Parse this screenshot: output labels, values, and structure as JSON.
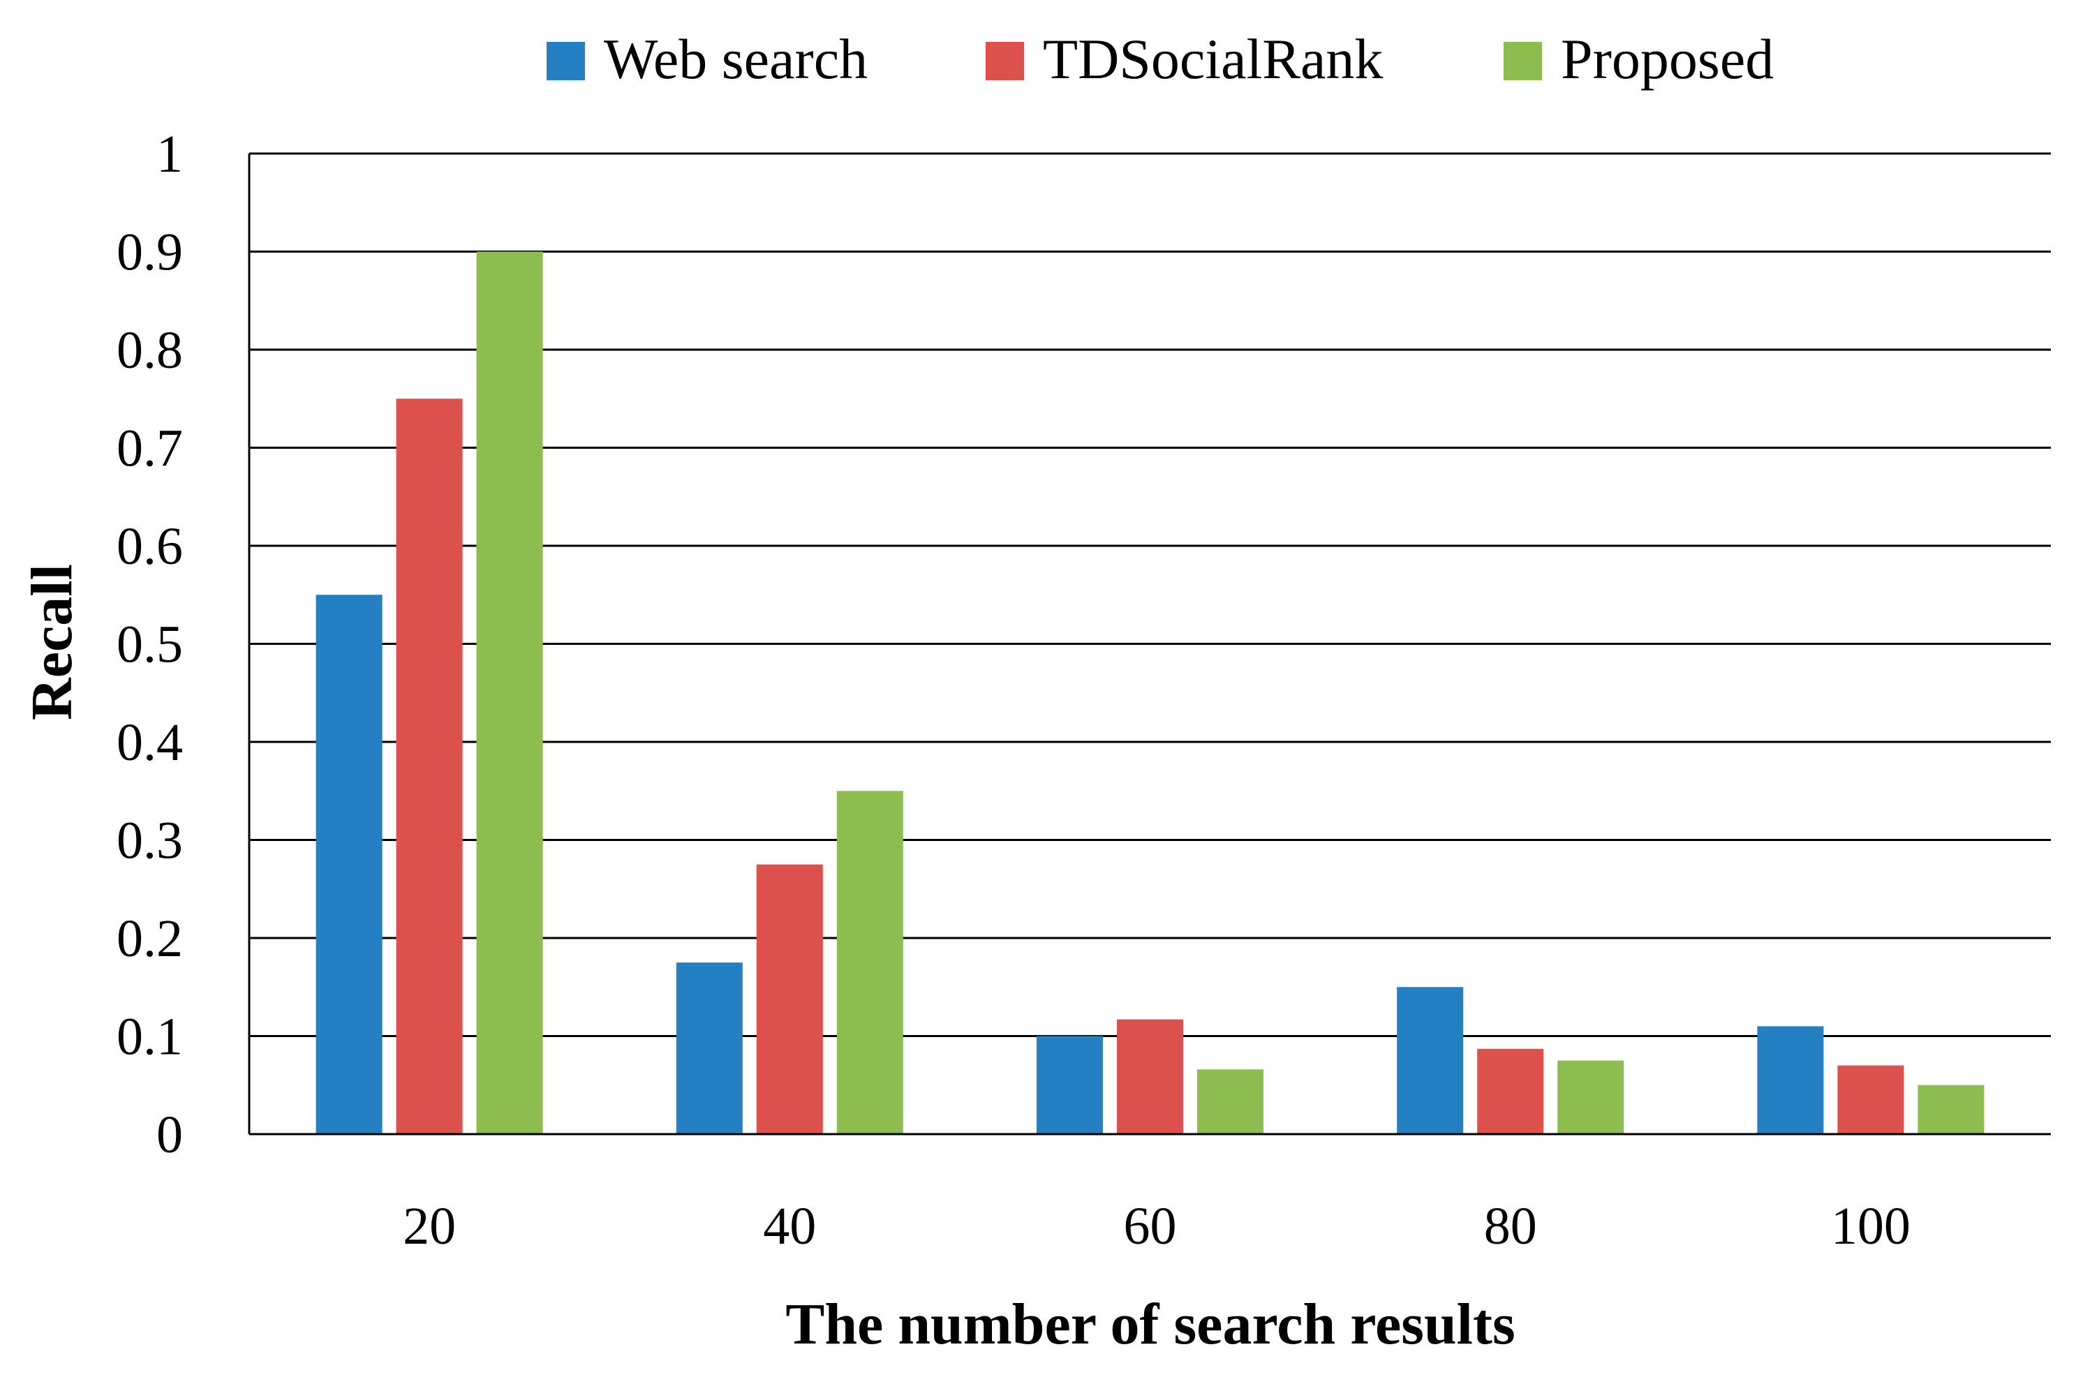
{
  "chart_data": {
    "type": "bar",
    "title": "",
    "xlabel": "The number of search results",
    "ylabel": "Recall",
    "categories": [
      "20",
      "40",
      "60",
      "80",
      "100"
    ],
    "series": [
      {
        "name": "Web search",
        "color": "#2580C3",
        "values": [
          0.55,
          0.175,
          0.1,
          0.15,
          0.11
        ]
      },
      {
        "name": "TDSocialRank",
        "color": "#DC514E",
        "values": [
          0.75,
          0.275,
          0.117,
          0.087,
          0.07
        ]
      },
      {
        "name": "Proposed",
        "color": "#8DBD4E",
        "values": [
          0.9,
          0.35,
          0.066,
          0.075,
          0.05
        ]
      }
    ],
    "ylim": [
      0,
      1
    ],
    "yticks": [
      0,
      0.1,
      0.2,
      0.3,
      0.4,
      0.5,
      0.6,
      0.7,
      0.8,
      0.9,
      1
    ],
    "ytick_labels": [
      "0",
      "0.1",
      "0.2",
      "0.3",
      "0.4",
      "0.5",
      "0.6",
      "0.7",
      "0.8",
      "0.9",
      "1"
    ],
    "grid": true,
    "legend_position": "top-center"
  }
}
